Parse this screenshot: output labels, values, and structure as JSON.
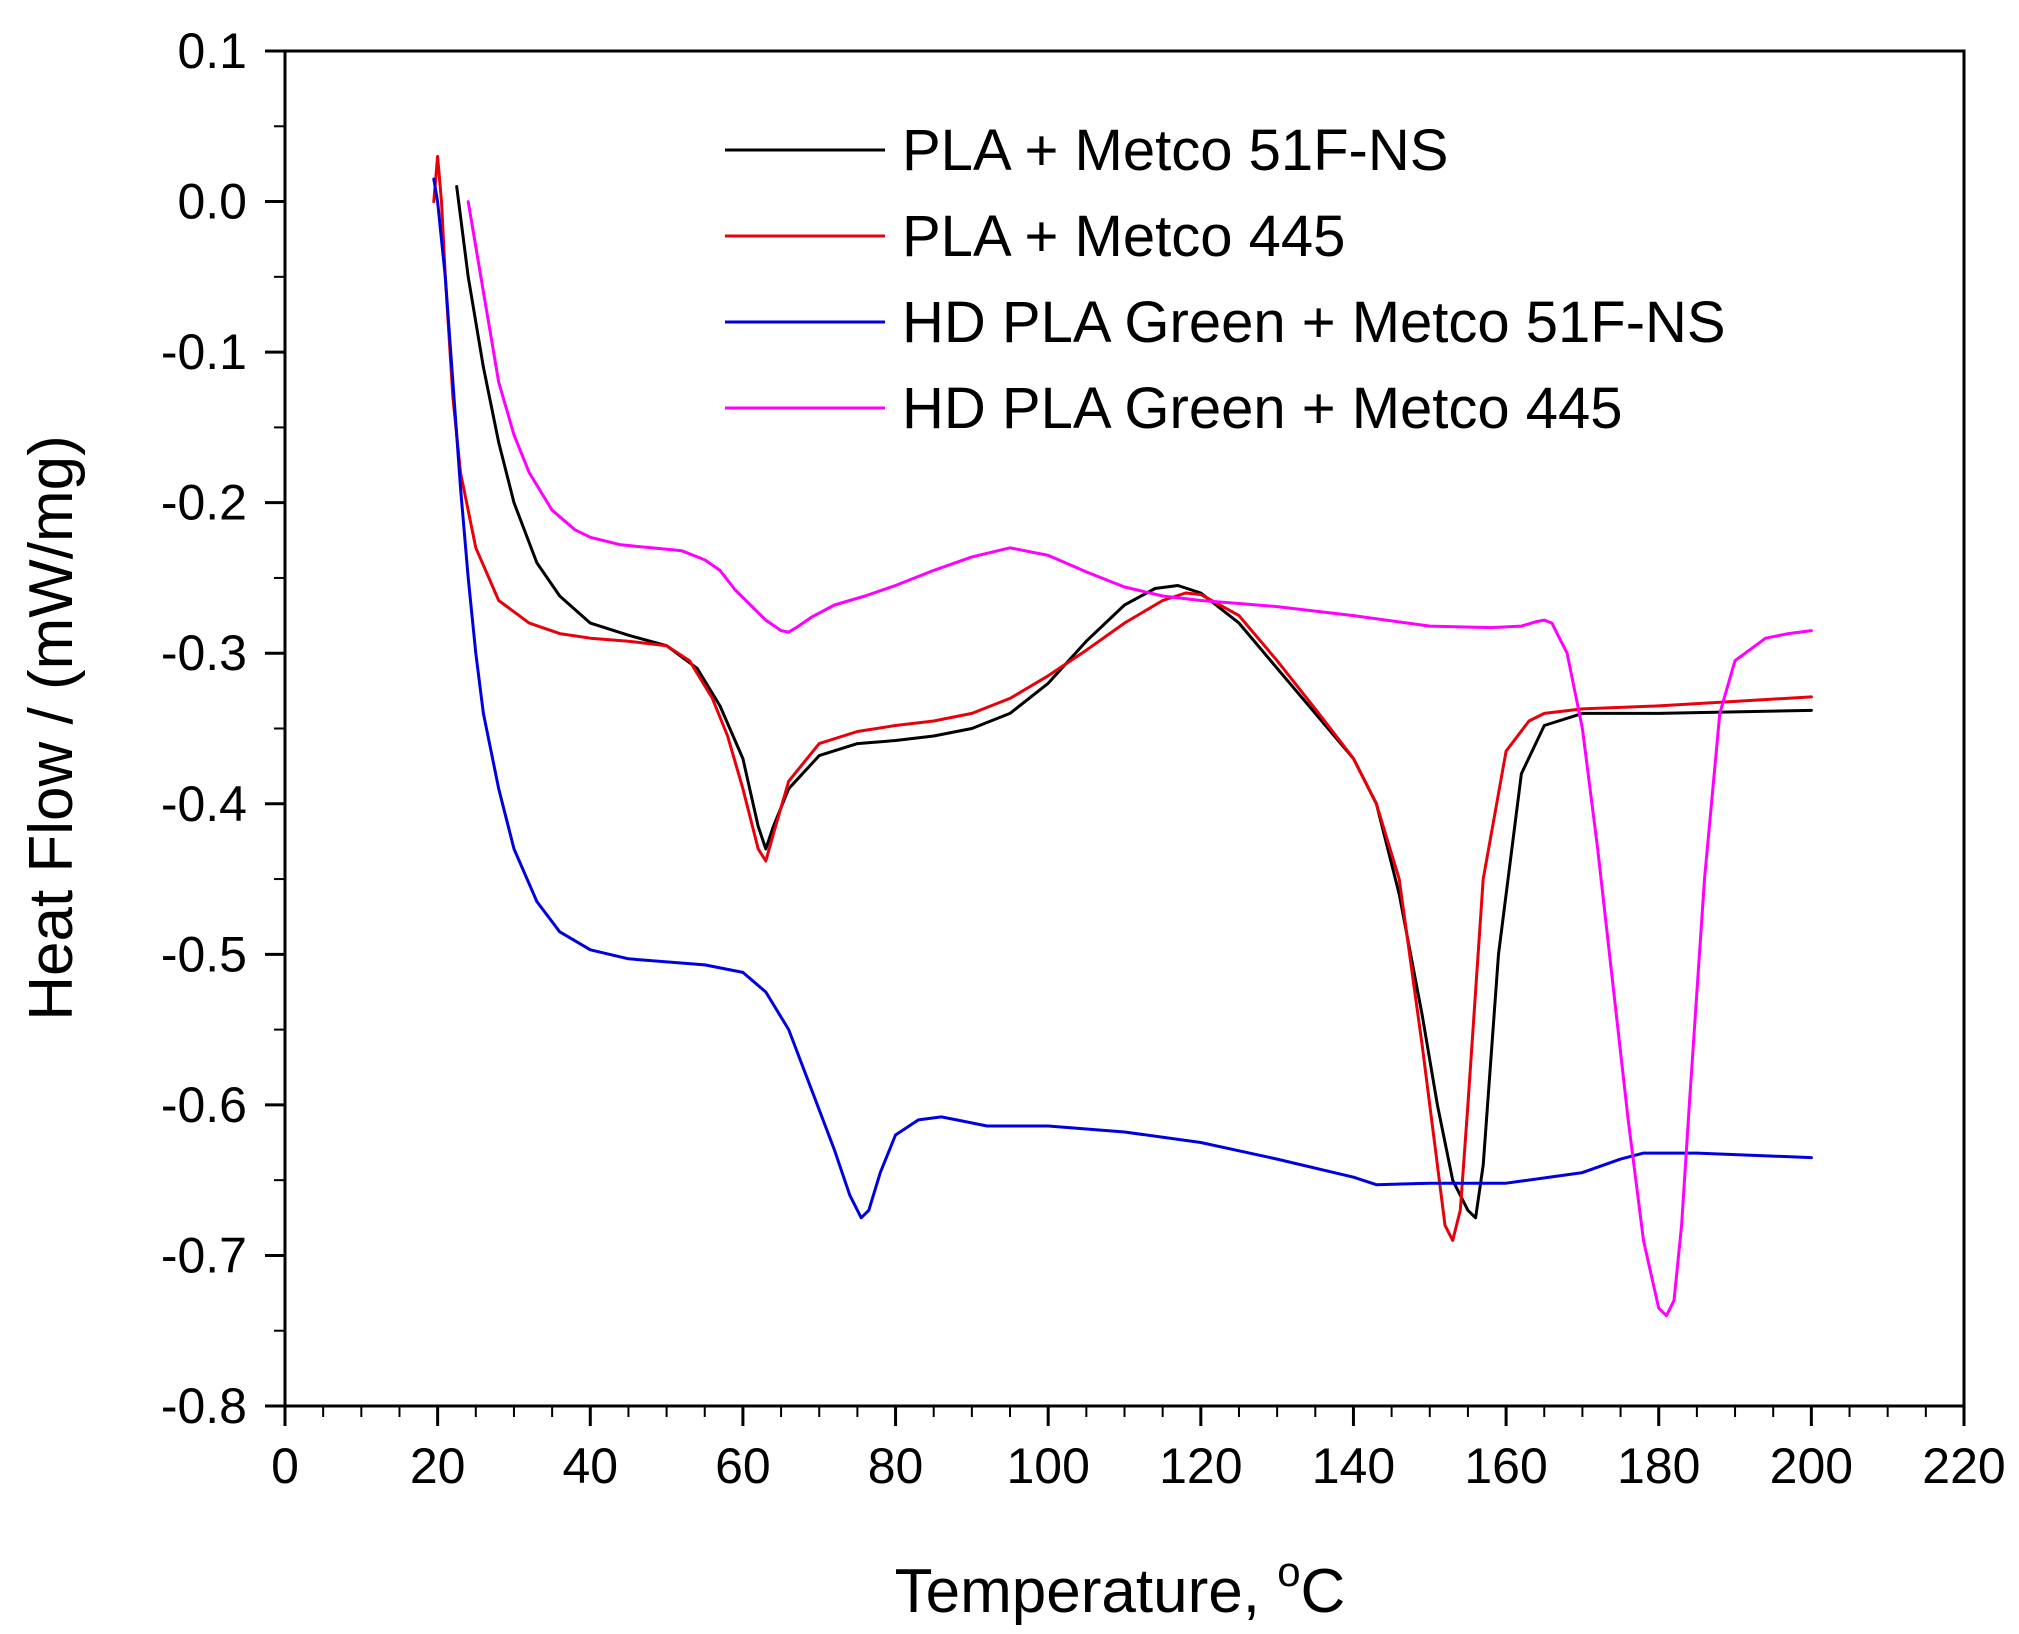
{
  "chart_data": {
    "type": "line",
    "title": "",
    "xlabel": "Temperature, ",
    "xlabel_unit_sup": "o",
    "xlabel_unit": "C",
    "ylabel": "Heat Flow / (mW/mg)",
    "xlim": [
      0,
      220
    ],
    "ylim": [
      -0.8,
      0.1
    ],
    "x_ticks": [
      0,
      20,
      40,
      60,
      80,
      100,
      120,
      140,
      160,
      180,
      200,
      220
    ],
    "x_tick_labels": [
      "0",
      "20",
      "40",
      "60",
      "80",
      "100",
      "120",
      "140",
      "160",
      "180",
      "200",
      "220"
    ],
    "y_ticks": [
      0.1,
      0.0,
      -0.1,
      -0.2,
      -0.3,
      -0.4,
      -0.5,
      -0.6,
      -0.7,
      -0.8
    ],
    "y_tick_labels": [
      "0.1",
      "0.0",
      "-0.1",
      "-0.2",
      "-0.3",
      "-0.4",
      "-0.5",
      "-0.6",
      "-0.7",
      "-0.8"
    ],
    "grid": false,
    "legend_position": "top-right",
    "series": [
      {
        "name": "PLA + Metco 51F-NS",
        "color": "#000000",
        "x": [
          22.5,
          24,
          26,
          28,
          30,
          33,
          36,
          40,
          45,
          50,
          54,
          57,
          60,
          62,
          63,
          64,
          66,
          70,
          75,
          80,
          85,
          90,
          95,
          100,
          105,
          110,
          114,
          117,
          120,
          125,
          130,
          135,
          140,
          143,
          146,
          149,
          151,
          153,
          155,
          156,
          157,
          159,
          162,
          165,
          170,
          180,
          190,
          200
        ],
        "y": [
          0.01,
          -0.05,
          -0.11,
          -0.16,
          -0.2,
          -0.24,
          -0.262,
          -0.28,
          -0.288,
          -0.295,
          -0.31,
          -0.335,
          -0.37,
          -0.415,
          -0.43,
          -0.415,
          -0.39,
          -0.368,
          -0.36,
          -0.358,
          -0.355,
          -0.35,
          -0.34,
          -0.32,
          -0.292,
          -0.268,
          -0.257,
          -0.255,
          -0.26,
          -0.28,
          -0.31,
          -0.34,
          -0.37,
          -0.4,
          -0.46,
          -0.54,
          -0.6,
          -0.65,
          -0.67,
          -0.675,
          -0.64,
          -0.5,
          -0.38,
          -0.348,
          -0.34,
          -0.34,
          -0.339,
          -0.338
        ]
      },
      {
        "name": "PLA + Metco 445",
        "color": "#e8000b",
        "x": [
          19.5,
          20,
          20.5,
          21,
          22,
          23,
          25,
          28,
          32,
          36,
          40,
          45,
          50,
          53,
          56,
          58,
          60,
          62,
          63,
          64,
          66,
          70,
          75,
          80,
          85,
          90,
          95,
          100,
          105,
          110,
          115,
          118,
          120,
          125,
          130,
          135,
          140,
          143,
          146,
          149,
          151,
          152,
          153,
          154,
          155,
          157,
          160,
          163,
          165,
          170,
          180,
          190,
          200
        ],
        "y": [
          0.0,
          0.03,
          0.0,
          -0.05,
          -0.13,
          -0.18,
          -0.23,
          -0.265,
          -0.28,
          -0.287,
          -0.29,
          -0.292,
          -0.295,
          -0.305,
          -0.33,
          -0.355,
          -0.39,
          -0.43,
          -0.438,
          -0.42,
          -0.385,
          -0.36,
          -0.352,
          -0.348,
          -0.345,
          -0.34,
          -0.33,
          -0.315,
          -0.298,
          -0.28,
          -0.265,
          -0.26,
          -0.261,
          -0.275,
          -0.305,
          -0.337,
          -0.37,
          -0.4,
          -0.45,
          -0.56,
          -0.64,
          -0.68,
          -0.69,
          -0.67,
          -0.6,
          -0.45,
          -0.365,
          -0.345,
          -0.34,
          -0.337,
          -0.335,
          -0.332,
          -0.329
        ]
      },
      {
        "name": "HD PLA Green + Metco 51F-NS",
        "color": "#0000dd",
        "x": [
          19.5,
          20,
          21,
          22,
          23,
          24,
          25,
          26,
          28,
          30,
          33,
          36,
          40,
          45,
          50,
          55,
          60,
          63,
          66,
          69,
          72,
          74,
          75.5,
          76.5,
          78,
          80,
          83,
          86,
          88,
          92,
          100,
          110,
          120,
          130,
          140,
          143,
          150,
          160,
          170,
          175,
          178,
          185,
          190,
          200
        ],
        "y": [
          0.015,
          0.0,
          -0.05,
          -0.12,
          -0.19,
          -0.25,
          -0.3,
          -0.34,
          -0.39,
          -0.43,
          -0.465,
          -0.485,
          -0.497,
          -0.503,
          -0.505,
          -0.507,
          -0.512,
          -0.525,
          -0.55,
          -0.59,
          -0.63,
          -0.66,
          -0.675,
          -0.67,
          -0.645,
          -0.62,
          -0.61,
          -0.608,
          -0.61,
          -0.614,
          -0.614,
          -0.618,
          -0.625,
          -0.636,
          -0.648,
          -0.653,
          -0.652,
          -0.652,
          -0.645,
          -0.636,
          -0.632,
          -0.632,
          -0.633,
          -0.635
        ]
      },
      {
        "name": "HD PLA Green + Metco 445",
        "color": "#ff00ff",
        "x": [
          24,
          25,
          26,
          27,
          28,
          30,
          32,
          35,
          38,
          40,
          44,
          48,
          52,
          55,
          57,
          59,
          61,
          63,
          65,
          66,
          67,
          69,
          72,
          76,
          80,
          85,
          90,
          95,
          100,
          105,
          110,
          115,
          120,
          125,
          130,
          140,
          150,
          158,
          162,
          164,
          165,
          166,
          168,
          170,
          172,
          174,
          176,
          178,
          180,
          181,
          182,
          183,
          184,
          186,
          188,
          190,
          194,
          197,
          200
        ],
        "y": [
          0.0,
          -0.03,
          -0.06,
          -0.09,
          -0.12,
          -0.155,
          -0.18,
          -0.205,
          -0.218,
          -0.223,
          -0.228,
          -0.23,
          -0.232,
          -0.238,
          -0.245,
          -0.258,
          -0.268,
          -0.278,
          -0.285,
          -0.286,
          -0.283,
          -0.276,
          -0.268,
          -0.262,
          -0.255,
          -0.245,
          -0.236,
          -0.23,
          -0.235,
          -0.246,
          -0.256,
          -0.262,
          -0.265,
          -0.267,
          -0.269,
          -0.275,
          -0.282,
          -0.283,
          -0.282,
          -0.279,
          -0.278,
          -0.28,
          -0.3,
          -0.35,
          -0.43,
          -0.52,
          -0.61,
          -0.69,
          -0.735,
          -0.74,
          -0.73,
          -0.68,
          -0.6,
          -0.45,
          -0.34,
          -0.305,
          -0.29,
          -0.287,
          -0.285
        ]
      }
    ]
  }
}
